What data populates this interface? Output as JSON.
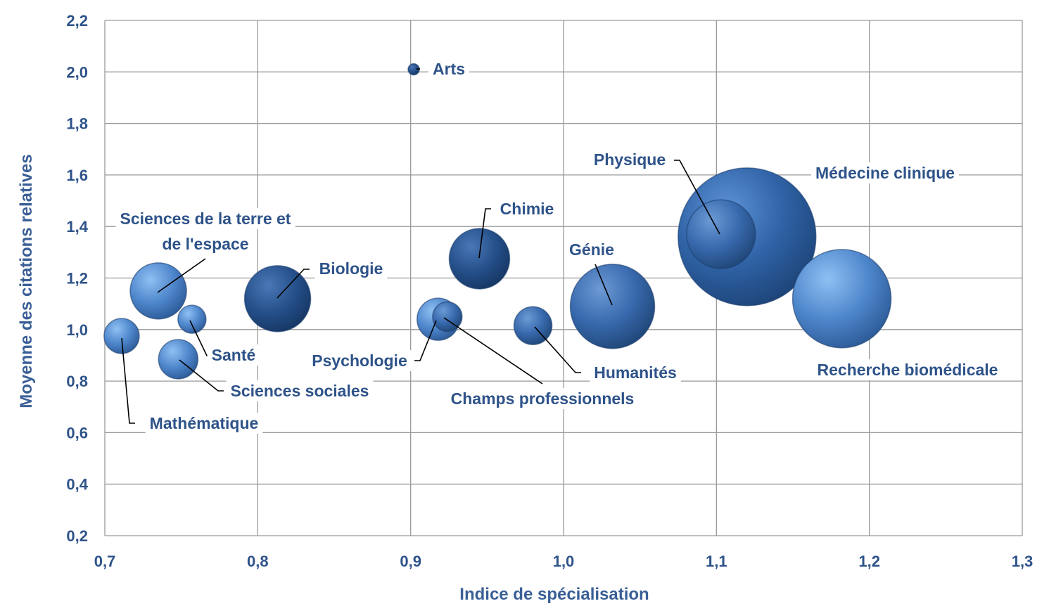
{
  "chart_data": {
    "type": "bubble",
    "xlabel": "Indice de spécialisation",
    "ylabel": "Moyenne des citations relatives",
    "xlim": [
      0.7,
      1.3
    ],
    "ylim": [
      0.2,
      2.2
    ],
    "xticks": [
      "0,7",
      "0,8",
      "0,9",
      "1,0",
      "1,1",
      "1,2",
      "1,3"
    ],
    "yticks": [
      "0,2",
      "0,4",
      "0,6",
      "0,8",
      "1,0",
      "1,2",
      "1,4",
      "1,6",
      "1,8",
      "2,0",
      "2,2"
    ],
    "grid": true,
    "colors": {
      "bubble_light": "#5f95d6",
      "bubble_dark": "#1f4070",
      "label": "#2e5389"
    },
    "points": [
      {
        "id": "medecine-clinique",
        "label": "Médecine clinique",
        "x": 1.12,
        "y": 1.36,
        "size": 100
      },
      {
        "id": "recherche-biomedicale",
        "label": "Recherche biomédicale",
        "x": 1.182,
        "y": 1.12,
        "size": 44
      },
      {
        "id": "genie",
        "label": "Génie",
        "x": 1.032,
        "y": 1.09,
        "size": 33
      },
      {
        "id": "physique",
        "label": "Physique",
        "x": 1.103,
        "y": 1.37,
        "size": 22
      },
      {
        "id": "biologie",
        "label": "Biologie",
        "x": 0.813,
        "y": 1.12,
        "size": 21
      },
      {
        "id": "chimie",
        "label": "Chimie",
        "x": 0.945,
        "y": 1.275,
        "size": 17
      },
      {
        "id": "sciences-terre-espace",
        "label": "Sciences de la terre et de l'espace",
        "x": 0.735,
        "y": 1.15,
        "size": 15
      },
      {
        "id": "psychologie",
        "label": "Psychologie",
        "x": 0.918,
        "y": 1.04,
        "size": 8
      },
      {
        "id": "champs-professionnels",
        "label": "Champs professionnels",
        "x": 0.924,
        "y": 1.05,
        "size": 4.5
      },
      {
        "id": "humanites",
        "label": "Humanités",
        "x": 0.98,
        "y": 1.015,
        "size": 6.5
      },
      {
        "id": "sciences-sociales",
        "label": "Sciences sociales",
        "x": 0.748,
        "y": 0.885,
        "size": 7
      },
      {
        "id": "mathematique",
        "label": "Mathématique",
        "x": 0.711,
        "y": 0.975,
        "size": 5.5
      },
      {
        "id": "sante",
        "label": "Santé",
        "x": 0.757,
        "y": 1.04,
        "size": 4
      },
      {
        "id": "arts",
        "label": "Arts",
        "x": 0.902,
        "y": 2.01,
        "size": 0.6
      }
    ]
  }
}
